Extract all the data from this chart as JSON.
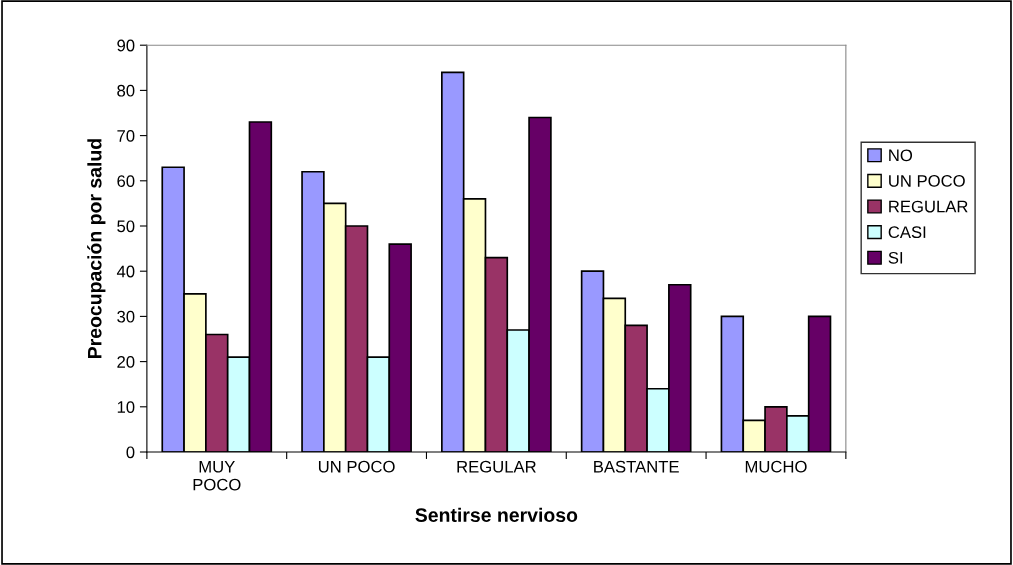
{
  "chart_data": {
    "type": "bar",
    "xlabel": "Sentirse nervioso",
    "ylabel": "Preocupación por salud",
    "categories": [
      "MUY\nPOCO",
      "UN POCO",
      "REGULAR",
      "BASTANTE",
      "MUCHO"
    ],
    "series": [
      {
        "name": "NO",
        "color": "#9999ff",
        "values": [
          63,
          62,
          84,
          40,
          30
        ]
      },
      {
        "name": "UN POCO",
        "color": "#ffffcc",
        "values": [
          35,
          55,
          56,
          34,
          7
        ]
      },
      {
        "name": "REGULAR",
        "color": "#993366",
        "values": [
          26,
          50,
          43,
          28,
          10
        ]
      },
      {
        "name": "CASI",
        "color": "#ccffff",
        "values": [
          21,
          21,
          27,
          14,
          8
        ]
      },
      {
        "name": "SI",
        "color": "#660066",
        "values": [
          73,
          46,
          74,
          37,
          30
        ]
      }
    ],
    "ylim": [
      0,
      90
    ],
    "yticks": [
      0,
      10,
      20,
      30,
      40,
      50,
      60,
      70,
      80,
      90
    ],
    "grid": false,
    "legend": "right"
  }
}
